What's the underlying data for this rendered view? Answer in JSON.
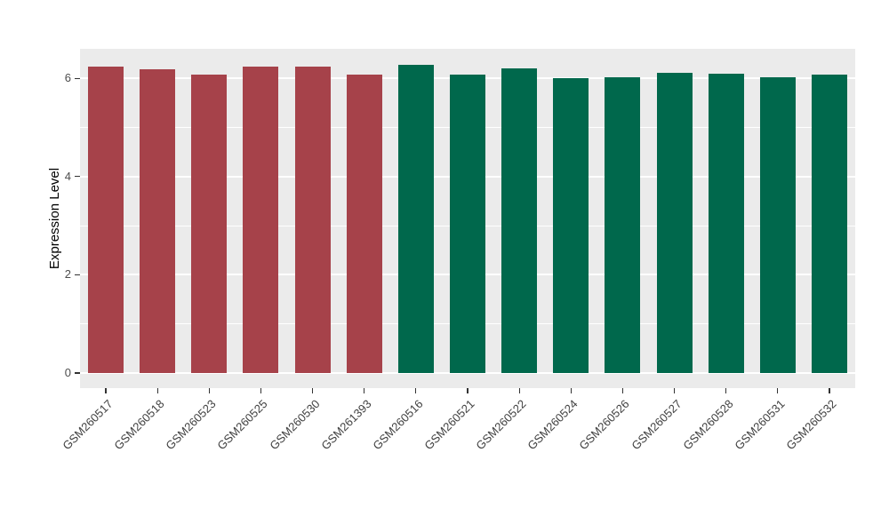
{
  "chart_data": {
    "type": "bar",
    "title": "",
    "xlabel": "",
    "ylabel": "Expression Level",
    "ylim": [
      0,
      6.6
    ],
    "yticks": [
      0,
      2,
      4,
      6
    ],
    "minor_gridlines": [
      1,
      3,
      5
    ],
    "grid": "on",
    "legend": "none",
    "panel_background": "#EBEBEB",
    "categories": [
      "GSM260517",
      "GSM260518",
      "GSM260523",
      "GSM260525",
      "GSM260530",
      "GSM261393",
      "GSM260516",
      "GSM260521",
      "GSM260522",
      "GSM260524",
      "GSM260526",
      "GSM260527",
      "GSM260528",
      "GSM260531",
      "GSM260532"
    ],
    "values": [
      6.23,
      6.19,
      6.07,
      6.23,
      6.23,
      6.07,
      6.27,
      6.08,
      6.21,
      6.01,
      6.03,
      6.12,
      6.1,
      6.03,
      6.07
    ],
    "bar_colors": [
      "#A6424A",
      "#A6424A",
      "#A6424A",
      "#A6424A",
      "#A6424A",
      "#A6424A",
      "#00684C",
      "#00684C",
      "#00684C",
      "#00684C",
      "#00684C",
      "#00684C",
      "#00684C",
      "#00684C",
      "#00684C"
    ],
    "groups": [
      {
        "name": "group-red",
        "color": "#A6424A",
        "categories": [
          "GSM260517",
          "GSM260518",
          "GSM260523",
          "GSM260525",
          "GSM260530",
          "GSM261393"
        ]
      },
      {
        "name": "group-green",
        "color": "#00684C",
        "categories": [
          "GSM260516",
          "GSM260521",
          "GSM260522",
          "GSM260524",
          "GSM260526",
          "GSM260527",
          "GSM260528",
          "GSM260531",
          "GSM260532"
        ]
      }
    ]
  }
}
